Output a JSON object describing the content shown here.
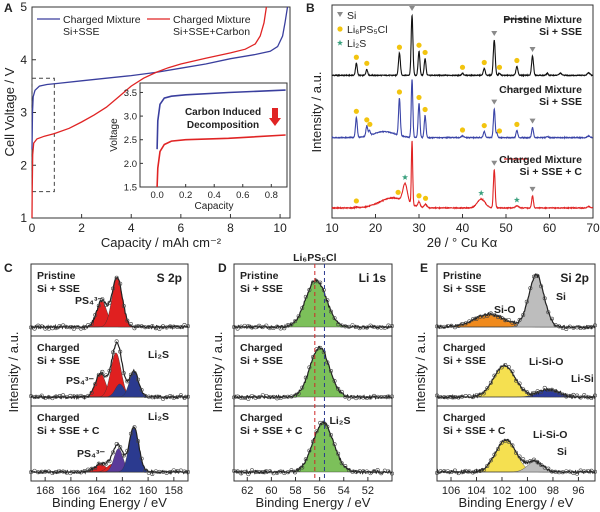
{
  "chart_data": [
    {
      "panel": "A",
      "type": "line",
      "xlabel": "Capacity / mAh cm⁻²",
      "ylabel": "Cell Voltage / V",
      "xlim": [
        0,
        10.4
      ],
      "ylim": [
        1,
        5
      ],
      "xticks": [
        0,
        2,
        4,
        6,
        8,
        10
      ],
      "yticks": [
        1,
        2,
        3,
        4,
        5
      ],
      "zoom_box": {
        "x": [
          0,
          0.9
        ],
        "y": [
          1.5,
          3.65
        ]
      },
      "series": [
        {
          "name_lines": [
            "Charged Mixture",
            "Si+SSE"
          ],
          "color": "#3a3f9e",
          "points": [
            [
              0,
              2.3
            ],
            [
              0.02,
              3.0
            ],
            [
              0.05,
              3.3
            ],
            [
              0.12,
              3.42
            ],
            [
              0.3,
              3.5
            ],
            [
              0.6,
              3.53
            ],
            [
              1,
              3.55
            ],
            [
              2,
              3.6
            ],
            [
              3,
              3.65
            ],
            [
              4,
              3.7
            ],
            [
              5,
              3.76
            ],
            [
              6,
              3.84
            ],
            [
              7,
              3.92
            ],
            [
              8,
              4.02
            ],
            [
              9,
              4.1
            ],
            [
              9.6,
              4.16
            ],
            [
              9.9,
              4.25
            ],
            [
              10.1,
              4.45
            ],
            [
              10.2,
              4.7
            ],
            [
              10.3,
              5.0
            ]
          ]
        },
        {
          "name_lines": [
            "Charged Mixture",
            "Si+SSE+Carbon"
          ],
          "color": "#e02424",
          "points": [
            [
              0,
              1.0
            ],
            [
              0.01,
              1.5
            ],
            [
              0.03,
              2.2
            ],
            [
              0.07,
              2.42
            ],
            [
              0.2,
              2.5
            ],
            [
              0.5,
              2.55
            ],
            [
              0.9,
              2.6
            ],
            [
              1.5,
              2.7
            ],
            [
              2,
              2.82
            ],
            [
              2.5,
              2.95
            ],
            [
              3,
              3.1
            ],
            [
              3.5,
              3.3
            ],
            [
              4,
              3.5
            ],
            [
              4.5,
              3.65
            ],
            [
              5,
              3.76
            ],
            [
              5.5,
              3.85
            ],
            [
              6,
              3.92
            ],
            [
              7,
              4.03
            ],
            [
              8,
              4.13
            ],
            [
              8.6,
              4.2
            ],
            [
              9,
              4.3
            ],
            [
              9.2,
              4.45
            ],
            [
              9.35,
              4.7
            ],
            [
              9.45,
              5.0
            ]
          ]
        }
      ],
      "inset": {
        "xlabel": "Capacity",
        "ylabel": "Voltage",
        "xlim": [
          -0.12,
          0.91
        ],
        "ylim": [
          1.5,
          3.7
        ],
        "xticks": [
          "0.0",
          "0.2",
          "0.4",
          "0.6",
          "0.8"
        ],
        "yticks": [
          "1.5",
          "2.0",
          "2.5",
          "3.0",
          "3.5"
        ],
        "annotation_lines": [
          "Carbon Induced",
          "Decomposition"
        ],
        "arrow_color": "#e02424",
        "series": [
          {
            "color": "#3a3f9e",
            "points": [
              [
                0,
                2.3
              ],
              [
                0.005,
                2.9
              ],
              [
                0.02,
                3.25
              ],
              [
                0.05,
                3.38
              ],
              [
                0.1,
                3.42
              ],
              [
                0.2,
                3.45
              ],
              [
                0.5,
                3.5
              ],
              [
                0.9,
                3.55
              ]
            ]
          },
          {
            "color": "#e02424",
            "points": [
              [
                0,
                1.5
              ],
              [
                0.005,
                1.9
              ],
              [
                0.02,
                2.25
              ],
              [
                0.05,
                2.4
              ],
              [
                0.1,
                2.47
              ],
              [
                0.2,
                2.5
              ],
              [
                0.5,
                2.53
              ],
              [
                0.9,
                2.6
              ]
            ]
          }
        ]
      }
    },
    {
      "panel": "B",
      "type": "line",
      "xlabel": "2θ / ° Cu Kα",
      "ylabel": "Intensity / a.u.",
      "xlim": [
        10,
        70
      ],
      "ylim": [
        0,
        5.3
      ],
      "xticks": [
        10,
        20,
        30,
        40,
        50,
        60,
        70
      ],
      "legend_markers": [
        {
          "symbol": "triangle-down",
          "label": "Si",
          "color": "#8a8a8a"
        },
        {
          "symbol": "circle",
          "label": "Li₆PS₅Cl",
          "color": "#f2c40f"
        },
        {
          "symbol": "star",
          "label": "Li₂S",
          "color": "#3aa17e"
        }
      ],
      "series": [
        {
          "name_lines": [
            "Pristine Mixture",
            "Si + SSE"
          ],
          "color": "#111111",
          "label_color": "#111111",
          "offset": 3.55,
          "peaks": [
            [
              15.6,
              0.3,
              0.2
            ],
            [
              18,
              0.15,
              0.2
            ],
            [
              25.5,
              0.55,
              0.22
            ],
            [
              28.4,
              1.5,
              0.2
            ],
            [
              30,
              0.6,
              0.2
            ],
            [
              31.4,
              0.42,
              0.2
            ],
            [
              40,
              0.05,
              0.2
            ],
            [
              45,
              0.17,
              0.22
            ],
            [
              47.3,
              0.88,
              0.22
            ],
            [
              48.5,
              0.05,
              0.2
            ],
            [
              52.5,
              0.22,
              0.22
            ],
            [
              56.1,
              0.48,
              0.22
            ],
            [
              59.5,
              0.05,
              0.2
            ],
            [
              62.5,
              0.05,
              0.3
            ],
            [
              69,
              0.06,
              0.3
            ]
          ],
          "markers": {
            "Si": [
              28.4,
              47.3,
              56.1
            ],
            "Li₆PS₅Cl": [
              15.6,
              18,
              25.5,
              30,
              31.4,
              40,
              45,
              48.5,
              52.5
            ],
            "Li₂S": []
          }
        },
        {
          "name_lines": [
            "Charged Mixture",
            "Si + SSE"
          ],
          "color": "#3b45a8",
          "label_color": "#3b45a8",
          "offset": 2.0,
          "peaks": [
            [
              15.6,
              0.5,
              0.2
            ],
            [
              18,
              0.25,
              0.2
            ],
            [
              18.6,
              0.12,
              0.2
            ],
            [
              22,
              0.15,
              2.5
            ],
            [
              25.5,
              0.93,
              0.2
            ],
            [
              28.4,
              1.45,
              0.18
            ],
            [
              30,
              0.85,
              0.2
            ],
            [
              31.4,
              0.55,
              0.2
            ],
            [
              40,
              0.04,
              0.3
            ],
            [
              45,
              0.15,
              0.22
            ],
            [
              47.3,
              0.72,
              0.2
            ],
            [
              47.9,
              0.12,
              0.15
            ],
            [
              52.5,
              0.18,
              0.2
            ],
            [
              56.1,
              0.25,
              0.2
            ],
            [
              59.5,
              0.03,
              0.2
            ],
            [
              69,
              0.04,
              0.3
            ]
          ],
          "markers": {
            "Si": [
              47.3,
              56.1
            ],
            "Li₆PS₅Cl": [
              15.6,
              18,
              18.7,
              25.5,
              30,
              31.4,
              40,
              45,
              48.5,
              52.5
            ],
            "Li₂S": []
          }
        },
        {
          "name_lines": [
            "Charged Mixture",
            "Si + SSE + C"
          ],
          "color": "#e02424",
          "label_color": "#e02424",
          "offset": 0.25,
          "peaks": [
            [
              15.6,
              0.02,
              0.3
            ],
            [
              24,
              0.25,
              3
            ],
            [
              26.8,
              0.45,
              0.5
            ],
            [
              28.4,
              1.6,
              0.15
            ],
            [
              30,
              0.12,
              0.25
            ],
            [
              31.5,
              0.08,
              0.3
            ],
            [
              44.3,
              0.22,
              0.9
            ],
            [
              47.3,
              0.95,
              0.2
            ],
            [
              52.5,
              0.05,
              0.4
            ],
            [
              56.1,
              0.3,
              0.2
            ],
            [
              69,
              0.04,
              0.3
            ]
          ],
          "markers": {
            "Si": [
              47.3,
              56.1
            ],
            "Li₆PS₅Cl": [
              15.6,
              25.2,
              30,
              31.5
            ],
            "Li₂S": [
              26.8,
              44.3,
              52.5
            ]
          }
        }
      ]
    },
    {
      "panel": "C",
      "type": "area",
      "title": "S 2p",
      "xlabel": "Binding Energy / eV",
      "ylabel": "Intensity / a.u.",
      "xlim": [
        169.1,
        156.9
      ],
      "xticks": [
        168,
        166,
        164,
        162,
        160,
        158
      ],
      "rows": [
        {
          "label_lines": [
            "Pristine",
            "Si + SSE"
          ],
          "components": [
            {
              "center": 163.6,
              "height": 0.5,
              "width": 0.4,
              "color": "#e02020"
            },
            {
              "center": 162.4,
              "height": 0.95,
              "width": 0.4,
              "color": "#e02020"
            }
          ],
          "labels": [
            {
              "text": "PS₄³⁻",
              "color": "#e02020"
            }
          ]
        },
        {
          "label_lines": [
            "Charged",
            "Si + SSE"
          ],
          "components": [
            {
              "center": 163.7,
              "height": 0.45,
              "width": 0.4,
              "color": "#e02020"
            },
            {
              "center": 162.5,
              "height": 0.85,
              "width": 0.4,
              "color": "#e02020"
            },
            {
              "center": 162.2,
              "height": 0.25,
              "width": 0.35,
              "color": "#2b3a8f"
            },
            {
              "center": 161.1,
              "height": 0.5,
              "width": 0.35,
              "color": "#2b3a8f"
            }
          ],
          "labels": [
            {
              "text": "PS₄³⁻",
              "color": "#e02020"
            },
            {
              "text": "Li₂S",
              "color": "#2b3a8f"
            }
          ]
        },
        {
          "label_lines": [
            "Charged",
            "Si + SSE + C"
          ],
          "components": [
            {
              "center": 163.7,
              "height": 0.15,
              "width": 0.45,
              "color": "#e02020"
            },
            {
              "center": 162.8,
              "height": 0.15,
              "width": 0.4,
              "color": "#e02020"
            },
            {
              "center": 162.3,
              "height": 0.45,
              "width": 0.35,
              "color": "#5a3a9a"
            },
            {
              "center": 161.1,
              "height": 0.85,
              "width": 0.38,
              "color": "#2b3a8f"
            }
          ],
          "labels": [
            {
              "text": "PS₄³⁻",
              "color": "#e02020"
            },
            {
              "text": "Li₂S",
              "color": "#2b3a8f"
            }
          ]
        }
      ]
    },
    {
      "panel": "D",
      "type": "area",
      "title": "Li 1s",
      "xlabel": "Binding Energy / eV",
      "ylabel": "Intensity / a.u.",
      "xlim": [
        63.1,
        50.0
      ],
      "xticks": [
        62,
        60,
        58,
        56,
        54,
        52
      ],
      "reference_lines": [
        {
          "x": 56.4,
          "label": "Li₆PS₅Cl",
          "color": "#d02828"
        },
        {
          "x": 55.6,
          "label": "Li₂S",
          "color": "#2b3a8f"
        }
      ],
      "rows": [
        {
          "label_lines": [
            "Pristine",
            "Si + SSE"
          ],
          "components": [
            {
              "center": 56.3,
              "height": 0.9,
              "width": 0.85,
              "color": "#7cc05a"
            }
          ],
          "labels": []
        },
        {
          "label_lines": [
            "Charged",
            "Si + SSE"
          ],
          "components": [
            {
              "center": 56.0,
              "height": 0.95,
              "width": 0.8,
              "color": "#7cc05a"
            }
          ],
          "labels": []
        },
        {
          "label_lines": [
            "Charged",
            "Si + SSE + C"
          ],
          "components": [
            {
              "center": 55.7,
              "height": 0.95,
              "width": 0.85,
              "color": "#7cc05a"
            }
          ],
          "labels": []
        }
      ]
    },
    {
      "panel": "E",
      "type": "area",
      "title": "Si 2p",
      "xlabel": "Binding Energy / eV",
      "ylabel": "Intensity / a.u.",
      "xlim": [
        107.1,
        94.7
      ],
      "xticks": [
        106,
        104,
        102,
        100,
        98,
        96
      ],
      "rows": [
        {
          "label_lines": [
            "Pristine",
            "Si + SSE"
          ],
          "components": [
            {
              "center": 103.0,
              "height": 0.25,
              "width": 1.2,
              "color": "#f08a1c"
            },
            {
              "center": 99.3,
              "height": 1.0,
              "width": 0.6,
              "color": "#bdbdbd"
            }
          ],
          "labels": [
            {
              "text": "Si-O",
              "color": "#f08a1c"
            },
            {
              "text": "Si",
              "color": "#555555"
            }
          ]
        },
        {
          "label_lines": [
            "Charged",
            "Si + SSE"
          ],
          "components": [
            {
              "center": 101.8,
              "height": 0.6,
              "width": 0.85,
              "color": "#f5e050"
            },
            {
              "center": 98.3,
              "height": 0.15,
              "width": 0.8,
              "color": "#2c3a9a"
            }
          ],
          "labels": [
            {
              "text": "Li-Si-O",
              "color": "#e0a800"
            },
            {
              "text": "Li-Si",
              "color": "#2c3a9a"
            }
          ]
        },
        {
          "label_lines": [
            "Charged",
            "Si + SSE + C"
          ],
          "components": [
            {
              "center": 101.7,
              "height": 0.62,
              "width": 0.8,
              "color": "#f5e050"
            },
            {
              "center": 99.4,
              "height": 0.2,
              "width": 0.6,
              "color": "#bdbdbd"
            }
          ],
          "labels": [
            {
              "text": "Li-Si-O",
              "color": "#e0a800"
            },
            {
              "text": "Si",
              "color": "#555555"
            }
          ]
        }
      ]
    }
  ]
}
